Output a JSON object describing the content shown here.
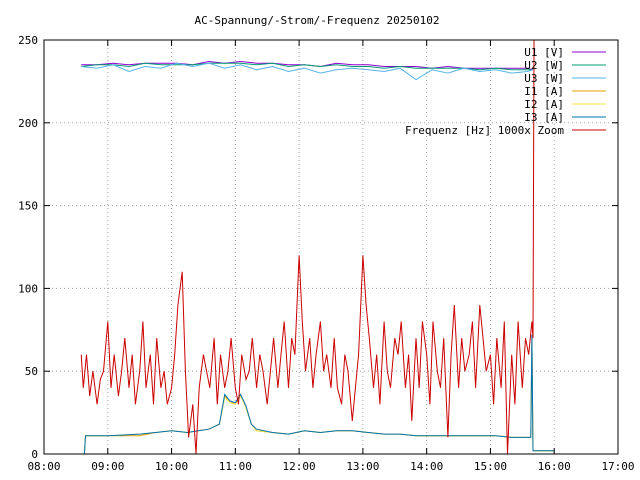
{
  "chart_data": {
    "type": "line",
    "title": "AC-Spannung/-Strom/-Frequenz 20250102",
    "xlabel": "",
    "ylabel": "",
    "xlim": [
      "08:00",
      "17:00"
    ],
    "ylim": [
      0,
      250
    ],
    "grid": true,
    "legend_position": "top-right",
    "x_ticks": [
      "08:00",
      "09:00",
      "10:00",
      "11:00",
      "12:00",
      "13:00",
      "14:00",
      "15:00",
      "16:00",
      "17:00"
    ],
    "y_ticks": [
      "0",
      "50",
      "100",
      "150",
      "200",
      "250"
    ],
    "series": [
      {
        "name": "U1 [V]",
        "color": "#9400d3",
        "x": [
          "08:35",
          "08:50",
          "09:05",
          "09:20",
          "09:35",
          "09:50",
          "10:05",
          "10:20",
          "10:35",
          "10:50",
          "11:05",
          "11:20",
          "11:35",
          "11:50",
          "12:05",
          "12:20",
          "12:35",
          "12:50",
          "13:05",
          "13:20",
          "13:35",
          "13:50",
          "14:05",
          "14:20",
          "14:35",
          "14:50",
          "15:05",
          "15:20",
          "15:35",
          "15:40"
        ],
        "values": [
          235,
          235,
          236,
          235,
          236,
          236,
          236,
          235,
          237,
          236,
          237,
          236,
          236,
          235,
          235,
          234,
          236,
          235,
          235,
          234,
          234,
          234,
          233,
          234,
          233,
          233,
          233,
          233,
          233,
          232
        ]
      },
      {
        "name": "U2 [W]",
        "color": "#009e73",
        "x": [
          "08:35",
          "08:50",
          "09:05",
          "09:20",
          "09:35",
          "09:50",
          "10:05",
          "10:20",
          "10:35",
          "10:50",
          "11:05",
          "11:20",
          "11:35",
          "11:50",
          "12:05",
          "12:20",
          "12:35",
          "12:50",
          "13:05",
          "13:20",
          "13:35",
          "13:50",
          "14:05",
          "14:20",
          "14:35",
          "14:50",
          "15:05",
          "15:20",
          "15:35",
          "15:40"
        ],
        "values": [
          234,
          235,
          235,
          234,
          236,
          235,
          235,
          235,
          236,
          236,
          236,
          235,
          236,
          234,
          235,
          234,
          235,
          234,
          234,
          233,
          234,
          233,
          233,
          233,
          233,
          232,
          233,
          232,
          232,
          232
        ]
      },
      {
        "name": "U3 [W]",
        "color": "#56b4e9",
        "x": [
          "08:35",
          "08:50",
          "09:05",
          "09:20",
          "09:35",
          "09:50",
          "10:05",
          "10:20",
          "10:35",
          "10:50",
          "11:05",
          "11:20",
          "11:35",
          "11:50",
          "12:05",
          "12:20",
          "12:35",
          "12:50",
          "13:05",
          "13:20",
          "13:35",
          "13:50",
          "14:05",
          "14:20",
          "14:35",
          "14:50",
          "15:05",
          "15:20",
          "15:35",
          "15:40"
        ],
        "values": [
          234,
          233,
          235,
          231,
          234,
          233,
          236,
          234,
          236,
          233,
          235,
          232,
          234,
          231,
          233,
          230,
          232,
          233,
          232,
          231,
          233,
          226,
          232,
          230,
          233,
          231,
          232,
          230,
          231,
          232
        ]
      },
      {
        "name": "I1 [A]",
        "color": "#e69f00",
        "x": [
          "08:35",
          "08:38",
          "08:39",
          "09:00",
          "09:30",
          "09:45",
          "10:00",
          "10:15",
          "10:25",
          "10:35",
          "10:45",
          "10:50",
          "10:55",
          "11:00",
          "11:05",
          "11:10",
          "11:15",
          "11:20",
          "11:35",
          "11:50",
          "12:05",
          "12:20",
          "12:35",
          "12:50",
          "13:05",
          "13:20",
          "13:35",
          "13:50",
          "14:05",
          "14:20",
          "14:35",
          "14:50",
          "15:05",
          "15:20",
          "15:35",
          "15:38",
          "15:39",
          "15:40",
          "15:50",
          "16:00"
        ],
        "values": [
          0,
          0,
          11,
          11,
          11,
          13,
          14,
          13,
          14,
          15,
          18,
          35,
          32,
          30,
          36,
          28,
          18,
          14,
          13,
          12,
          14,
          13,
          14,
          14,
          13,
          12,
          12,
          11,
          11,
          11,
          11,
          11,
          11,
          10,
          10,
          10,
          70,
          2,
          2,
          2
        ]
      },
      {
        "name": "I2 [A]",
        "color": "#f0e442",
        "x": [
          "08:35",
          "08:38",
          "08:39",
          "09:00",
          "09:30",
          "09:45",
          "10:00",
          "10:15",
          "10:25",
          "10:35",
          "10:45",
          "10:50",
          "10:55",
          "11:00",
          "11:05",
          "11:10",
          "11:15",
          "11:20",
          "11:35",
          "11:50",
          "12:05",
          "12:20",
          "12:35",
          "12:50",
          "13:05",
          "13:20",
          "13:35",
          "13:50",
          "14:05",
          "14:20",
          "14:35",
          "14:50",
          "15:05",
          "15:20",
          "15:35",
          "15:38",
          "15:39",
          "15:40",
          "15:50",
          "16:00"
        ],
        "values": [
          0,
          0,
          11,
          11,
          12,
          13,
          14,
          13,
          14,
          15,
          18,
          34,
          31,
          30,
          35,
          28,
          18,
          14,
          13,
          12,
          14,
          13,
          14,
          14,
          13,
          12,
          12,
          11,
          11,
          11,
          11,
          11,
          11,
          10,
          10,
          10,
          68,
          2,
          2,
          2
        ]
      },
      {
        "name": "I3 [A]",
        "color": "#0072b2",
        "x": [
          "08:35",
          "08:38",
          "08:39",
          "09:00",
          "09:30",
          "09:45",
          "10:00",
          "10:15",
          "10:25",
          "10:35",
          "10:45",
          "10:50",
          "10:55",
          "11:00",
          "11:05",
          "11:10",
          "11:15",
          "11:20",
          "11:35",
          "11:50",
          "12:05",
          "12:20",
          "12:35",
          "12:50",
          "13:05",
          "13:20",
          "13:35",
          "13:50",
          "14:05",
          "14:20",
          "14:35",
          "14:50",
          "15:05",
          "15:20",
          "15:35",
          "15:38",
          "15:39",
          "15:40",
          "15:50",
          "16:00"
        ],
        "values": [
          0,
          0,
          11,
          11,
          12,
          13,
          14,
          13,
          14,
          15,
          18,
          36,
          32,
          31,
          36,
          29,
          18,
          15,
          13,
          12,
          14,
          13,
          14,
          14,
          13,
          12,
          12,
          11,
          11,
          11,
          11,
          11,
          11,
          10,
          10,
          10,
          72,
          2,
          2,
          2
        ]
      },
      {
        "name": "Frequenz [Hz] 1000x Zoom",
        "color": "#cc0000",
        "x": [
          "08:35",
          "08:37",
          "08:40",
          "08:43",
          "08:46",
          "08:50",
          "08:53",
          "08:56",
          "09:00",
          "09:03",
          "09:06",
          "09:10",
          "09:13",
          "09:16",
          "09:20",
          "09:23",
          "09:26",
          "09:30",
          "09:33",
          "09:36",
          "09:40",
          "09:43",
          "09:46",
          "09:50",
          "09:53",
          "09:56",
          "10:00",
          "10:03",
          "10:06",
          "10:10",
          "10:13",
          "10:16",
          "10:20",
          "10:23",
          "10:26",
          "10:30",
          "10:33",
          "10:36",
          "10:40",
          "10:43",
          "10:46",
          "10:50",
          "10:53",
          "10:56",
          "11:00",
          "11:03",
          "11:06",
          "11:10",
          "11:13",
          "11:16",
          "11:20",
          "11:23",
          "11:26",
          "11:30",
          "11:33",
          "11:36",
          "11:40",
          "11:43",
          "11:46",
          "11:50",
          "11:53",
          "11:56",
          "12:00",
          "12:03",
          "12:06",
          "12:10",
          "12:13",
          "12:16",
          "12:20",
          "12:23",
          "12:26",
          "12:30",
          "12:33",
          "12:36",
          "12:40",
          "12:43",
          "12:46",
          "12:50",
          "12:53",
          "12:56",
          "13:00",
          "13:03",
          "13:06",
          "13:10",
          "13:13",
          "13:16",
          "13:20",
          "13:23",
          "13:26",
          "13:30",
          "13:33",
          "13:36",
          "13:40",
          "13:43",
          "13:46",
          "13:50",
          "13:53",
          "13:56",
          "14:00",
          "14:03",
          "14:06",
          "14:10",
          "14:13",
          "14:16",
          "14:20",
          "14:23",
          "14:26",
          "14:30",
          "14:33",
          "14:36",
          "14:40",
          "14:43",
          "14:46",
          "14:50",
          "14:53",
          "14:56",
          "15:00",
          "15:03",
          "15:06",
          "15:10",
          "15:13",
          "15:16",
          "15:20",
          "15:23",
          "15:26",
          "15:30",
          "15:33",
          "15:36",
          "15:39",
          "15:40",
          "15:41"
        ],
        "values": [
          60,
          40,
          60,
          35,
          50,
          30,
          45,
          50,
          80,
          40,
          60,
          35,
          50,
          70,
          40,
          60,
          30,
          50,
          80,
          40,
          60,
          30,
          70,
          40,
          50,
          30,
          40,
          60,
          90,
          110,
          50,
          10,
          30,
          0,
          40,
          60,
          50,
          40,
          70,
          30,
          60,
          40,
          50,
          70,
          40,
          30,
          60,
          45,
          50,
          70,
          40,
          60,
          50,
          30,
          50,
          70,
          40,
          60,
          80,
          40,
          70,
          60,
          120,
          80,
          50,
          70,
          40,
          60,
          80,
          50,
          60,
          40,
          70,
          40,
          30,
          60,
          50,
          20,
          40,
          60,
          120,
          90,
          70,
          40,
          60,
          30,
          80,
          50,
          40,
          70,
          60,
          80,
          40,
          60,
          20,
          70,
          40,
          80,
          60,
          30,
          80,
          50,
          40,
          70,
          10,
          60,
          90,
          40,
          70,
          50,
          60,
          80,
          40,
          90,
          70,
          50,
          60,
          30,
          70,
          40,
          80,
          0,
          60,
          30,
          80,
          40,
          70,
          60,
          80,
          70,
          250
        ]
      }
    ]
  }
}
